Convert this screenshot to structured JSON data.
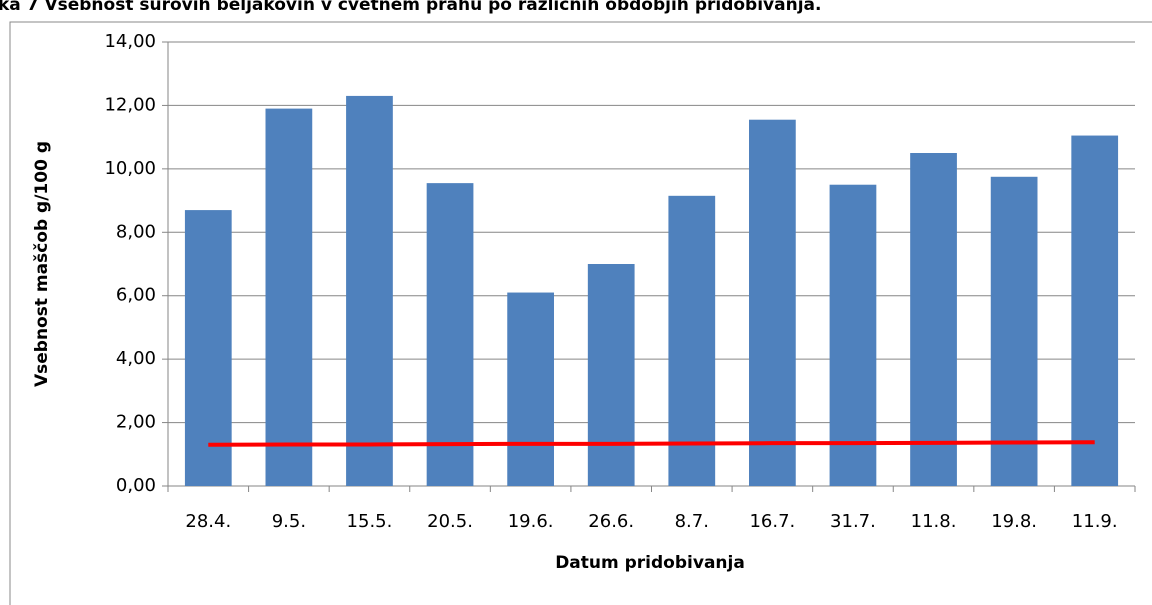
{
  "chart_data": {
    "type": "bar",
    "title": "ka 7 Vsebnost surovih beljakovin v cvetnem prahu po različnih obdobjih pridobivanja.",
    "x_label": "Datum pridobivanja",
    "y_label": "Vsebnost maščob g/100 g",
    "categories": [
      "28.4.",
      "9.5.",
      "15.5.",
      "20.5.",
      "19.6.",
      "26.6.",
      "8.7.",
      "16.7.",
      "31.7.",
      "11.8.",
      "19.8.",
      "11.9."
    ],
    "series": [
      {
        "type": "bar",
        "color": "#4f81bd",
        "values": [
          8.7,
          11.9,
          12.3,
          9.55,
          6.1,
          7.0,
          9.15,
          11.55,
          9.5,
          10.5,
          9.75,
          11.05
        ]
      },
      {
        "type": "line",
        "color": "#ff0000",
        "values": [
          1.3,
          1.31,
          1.31,
          1.32,
          1.33,
          1.33,
          1.34,
          1.35,
          1.35,
          1.36,
          1.37,
          1.38
        ]
      }
    ],
    "ylim": [
      0,
      14
    ],
    "yticks": [
      {
        "value": 0,
        "label": "0,00"
      },
      {
        "value": 2,
        "label": "2,00"
      },
      {
        "value": 4,
        "label": "4,00"
      },
      {
        "value": 6,
        "label": "6,00"
      },
      {
        "value": 8,
        "label": "8,00"
      },
      {
        "value": 10,
        "label": "10,00"
      },
      {
        "value": 12,
        "label": "12,00"
      },
      {
        "value": 14,
        "label": "14,00"
      }
    ],
    "grid": true
  }
}
